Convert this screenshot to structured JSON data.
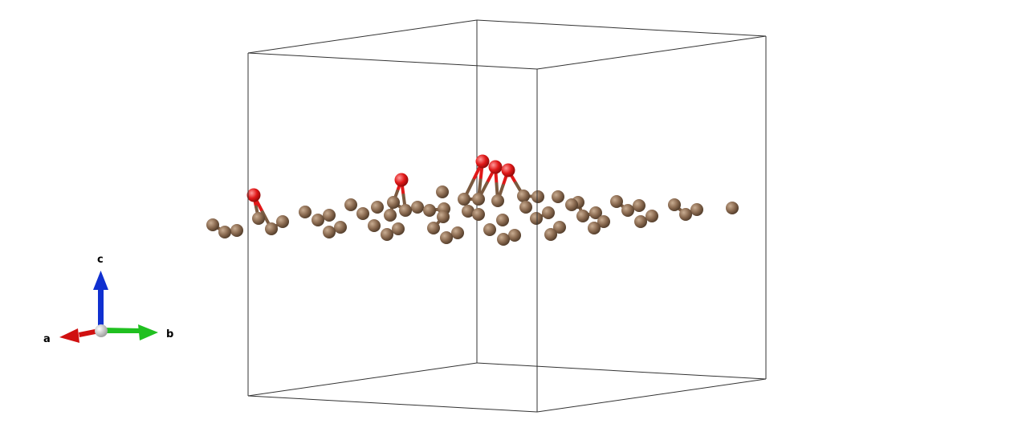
{
  "axes": {
    "a": {
      "label": "a",
      "color": "#d01010"
    },
    "b": {
      "label": "b",
      "color": "#20c020"
    },
    "c": {
      "label": "c",
      "color": "#1030d0"
    },
    "origin_color": "#d8d8d8"
  },
  "atoms": {
    "carbon_color": "#8a6a50",
    "oxygen_color": "#e01818"
  },
  "cell_edge_color": "#333333"
}
